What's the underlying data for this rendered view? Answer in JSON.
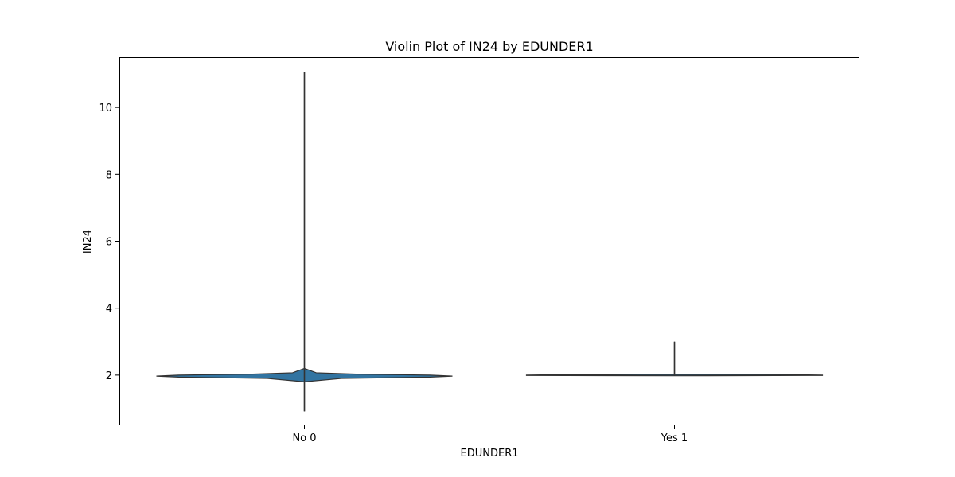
{
  "chart_data": {
    "type": "violin",
    "title": "Violin Plot of IN24 by EDUNDER1",
    "xlabel": "EDUNDER1",
    "ylabel": "IN24",
    "categories": [
      "No 0",
      "Yes 1"
    ],
    "ylim": [
      0.5,
      11.5
    ],
    "yticks": [
      2,
      4,
      6,
      8,
      10
    ],
    "grid": false,
    "fill_color": "#3274a1",
    "line_color": "#333333",
    "violins": [
      {
        "category": "No 0",
        "min": 0.92,
        "max": 11.05,
        "mode": 1.97,
        "profile": [
          [
            0.92,
            0.0
          ],
          [
            1.8,
            0.0
          ],
          [
            1.9,
            0.25
          ],
          [
            1.94,
            0.85
          ],
          [
            1.97,
            1.0
          ],
          [
            2.0,
            0.85
          ],
          [
            2.03,
            0.35
          ],
          [
            2.07,
            0.08
          ],
          [
            2.2,
            0.0
          ],
          [
            11.05,
            0.0
          ]
        ]
      },
      {
        "category": "Yes 1",
        "min": 1.98,
        "max": 3.0,
        "mode": 2.0,
        "profile": [
          [
            1.98,
            0.0
          ],
          [
            1.99,
            1.0
          ],
          [
            2.0,
            1.0
          ],
          [
            2.01,
            0.85
          ],
          [
            2.02,
            0.0
          ],
          [
            3.0,
            0.0
          ]
        ]
      }
    ]
  }
}
